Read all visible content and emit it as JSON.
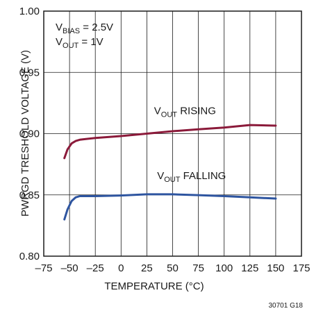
{
  "chart_data": {
    "type": "line",
    "xlabel": "TEMPERATURE (°C)",
    "ylabel": "PWRGD TRESHOLD VOLTAGE (V)",
    "xlim": [
      -75,
      175
    ],
    "ylim": [
      0.8,
      1.0
    ],
    "x_ticks": [
      -75,
      -50,
      -25,
      0,
      25,
      50,
      75,
      100,
      125,
      150,
      175
    ],
    "x_tick_labels": [
      "–75",
      "–50",
      "–25",
      "0",
      "25",
      "50",
      "75",
      "100",
      "125",
      "150",
      "175"
    ],
    "y_ticks": [
      0.8,
      0.85,
      0.9,
      0.95,
      1.0
    ],
    "y_tick_labels": [
      "0.80",
      "0.85",
      "0.90",
      "0.95",
      "1.00"
    ],
    "grid": true,
    "line_color": "#8b1a3a",
    "line_color_2": "#2e55a0",
    "conditions": [
      {
        "main": "V",
        "sub": "BIAS",
        "rest": " = 2.5V"
      },
      {
        "main": "V",
        "sub": "OUT",
        "rest": " = 1V"
      }
    ],
    "series": [
      {
        "label_main": "V",
        "label_sub": "OUT",
        "label_rest": " RISING",
        "x": [
          -55,
          -52,
          -48,
          -44,
          -40,
          -35,
          -25,
          0,
          25,
          50,
          75,
          100,
          125,
          150
        ],
        "y": [
          0.88,
          0.887,
          0.892,
          0.894,
          0.895,
          0.8955,
          0.8965,
          0.898,
          0.9,
          0.902,
          0.9035,
          0.905,
          0.907,
          0.9065
        ]
      },
      {
        "label_main": "V",
        "label_sub": "OUT",
        "label_rest": " FALLING",
        "x": [
          -55,
          -52,
          -48,
          -44,
          -40,
          -35,
          -25,
          0,
          25,
          50,
          75,
          100,
          125,
          150
        ],
        "y": [
          0.83,
          0.838,
          0.845,
          0.848,
          0.849,
          0.849,
          0.849,
          0.8495,
          0.8505,
          0.8505,
          0.8498,
          0.849,
          0.848,
          0.847
        ]
      }
    ]
  },
  "figure_id": "30701 G18"
}
